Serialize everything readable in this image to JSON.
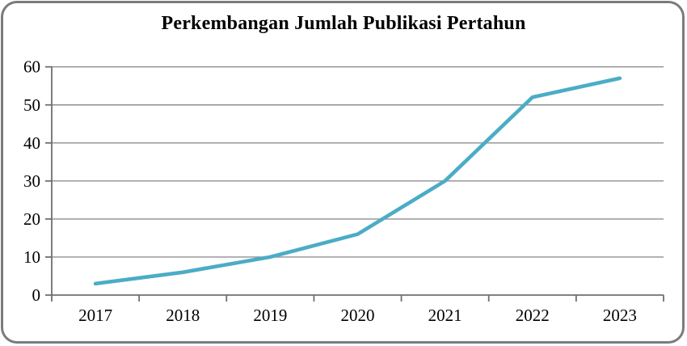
{
  "chart_data": {
    "type": "line",
    "title": "Perkembangan Jumlah Publikasi Pertahun",
    "categories": [
      "2017",
      "2018",
      "2019",
      "2020",
      "2021",
      "2022",
      "2023"
    ],
    "values": [
      3,
      6,
      10,
      16,
      30,
      52,
      57
    ],
    "xlabel": "",
    "ylabel": "",
    "ylim": [
      0,
      60
    ],
    "yticks": [
      0,
      10,
      20,
      30,
      40,
      50,
      60
    ],
    "grid": "horizontal",
    "legend": "none",
    "line_color": "#4BACC6",
    "gridline_color": "#8f8f8f",
    "axis_color": "#6f6f6f",
    "border_color": "#7b7b7b",
    "text_color": "#000000"
  }
}
